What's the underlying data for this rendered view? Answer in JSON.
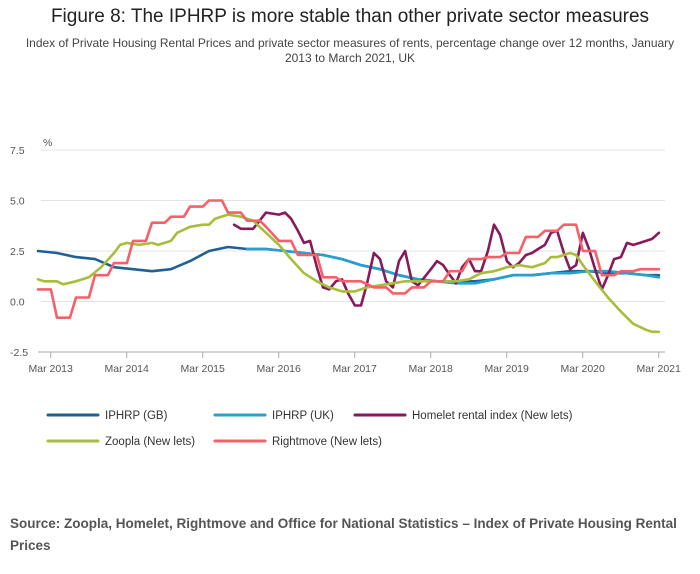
{
  "title": "Figure 8: The IPHRP is more stable than other private sector measures",
  "subtitle": "Index of Private Housing Rental Prices and private sector measures of rents, percentage change over 12 months, January 2013 to March 2021, UK",
  "source": "Source: Zoopla, Homelet, Rightmove and Office for National Statistics – Index of Private Housing Rental Prices",
  "colors": {
    "iphrp_gb": "#206095",
    "iphrp_uk": "#27a0cc",
    "homelet": "#871a5b",
    "zoopla": "#a8bd3a",
    "rightmove": "#f66068"
  },
  "chart_data": {
    "type": "line",
    "ylabel": "%",
    "xlabel": "",
    "ylim": [
      -2.5,
      7.5
    ],
    "xlim": [
      2013.0,
      2021.25
    ],
    "yticks": [
      -2.5,
      0.0,
      2.5,
      5.0,
      7.5
    ],
    "ytick_labels": [
      "-2.5",
      "0.0",
      "2.5",
      "5.0",
      "7.5"
    ],
    "xticks": [
      2013.167,
      2014.167,
      2015.167,
      2016.167,
      2017.167,
      2018.167,
      2019.167,
      2020.167,
      2021.167
    ],
    "xtick_labels": [
      "Mar 2013",
      "Mar 2014",
      "Mar 2015",
      "Mar 2016",
      "Mar 2017",
      "Mar 2018",
      "Mar 2019",
      "Mar 2020",
      "Mar 2021"
    ],
    "grid": true,
    "legend_position": "bottom",
    "series": [
      {
        "name": "IPHRP (GB)",
        "color_key": "iphrp_gb",
        "points": [
          [
            2013.0,
            2.5
          ],
          [
            2013.25,
            2.4
          ],
          [
            2013.5,
            2.2
          ],
          [
            2013.75,
            2.1
          ],
          [
            2014.0,
            1.7
          ],
          [
            2014.25,
            1.6
          ],
          [
            2014.5,
            1.5
          ],
          [
            2014.75,
            1.6
          ],
          [
            2015.0,
            2.0
          ],
          [
            2015.25,
            2.5
          ],
          [
            2015.5,
            2.7
          ],
          [
            2015.75,
            2.6
          ],
          [
            2016.0,
            2.6
          ],
          [
            2016.25,
            2.5
          ],
          [
            2016.5,
            2.4
          ],
          [
            2016.75,
            2.3
          ],
          [
            2017.0,
            2.1
          ],
          [
            2017.25,
            1.8
          ],
          [
            2017.5,
            1.6
          ],
          [
            2017.75,
            1.3
          ],
          [
            2018.0,
            1.1
          ],
          [
            2018.25,
            1.0
          ],
          [
            2018.5,
            1.0
          ],
          [
            2018.75,
            1.0
          ],
          [
            2019.0,
            1.1
          ],
          [
            2019.25,
            1.3
          ],
          [
            2019.5,
            1.3
          ],
          [
            2019.75,
            1.4
          ],
          [
            2020.0,
            1.5
          ],
          [
            2020.25,
            1.5
          ],
          [
            2020.5,
            1.4
          ],
          [
            2020.75,
            1.4
          ],
          [
            2021.0,
            1.3
          ],
          [
            2021.17,
            1.3
          ]
        ]
      },
      {
        "name": "IPHRP (UK)",
        "color_key": "iphrp_uk",
        "points": [
          [
            2015.75,
            2.6
          ],
          [
            2016.0,
            2.6
          ],
          [
            2016.25,
            2.5
          ],
          [
            2016.5,
            2.4
          ],
          [
            2016.75,
            2.3
          ],
          [
            2017.0,
            2.1
          ],
          [
            2017.25,
            1.8
          ],
          [
            2017.5,
            1.6
          ],
          [
            2017.75,
            1.3
          ],
          [
            2018.0,
            1.1
          ],
          [
            2018.25,
            1.0
          ],
          [
            2018.5,
            0.9
          ],
          [
            2018.75,
            0.9
          ],
          [
            2019.0,
            1.1
          ],
          [
            2019.25,
            1.3
          ],
          [
            2019.5,
            1.3
          ],
          [
            2019.75,
            1.4
          ],
          [
            2020.0,
            1.4
          ],
          [
            2020.25,
            1.5
          ],
          [
            2020.5,
            1.5
          ],
          [
            2020.75,
            1.4
          ],
          [
            2021.0,
            1.3
          ],
          [
            2021.17,
            1.2
          ]
        ]
      },
      {
        "name": "Homelet rental index (New lets)",
        "color_key": "homelet",
        "points": [
          [
            2015.58,
            3.8
          ],
          [
            2015.67,
            3.6
          ],
          [
            2015.83,
            3.6
          ],
          [
            2016.0,
            4.4
          ],
          [
            2016.17,
            4.3
          ],
          [
            2016.25,
            4.4
          ],
          [
            2016.33,
            4.1
          ],
          [
            2016.42,
            3.5
          ],
          [
            2016.5,
            2.9
          ],
          [
            2016.58,
            3.0
          ],
          [
            2016.67,
            1.7
          ],
          [
            2016.75,
            0.7
          ],
          [
            2016.83,
            0.6
          ],
          [
            2016.92,
            1.0
          ],
          [
            2017.0,
            1.1
          ],
          [
            2017.08,
            0.4
          ],
          [
            2017.17,
            -0.2
          ],
          [
            2017.25,
            -0.2
          ],
          [
            2017.33,
            0.9
          ],
          [
            2017.42,
            2.4
          ],
          [
            2017.5,
            2.1
          ],
          [
            2017.58,
            1.0
          ],
          [
            2017.67,
            0.7
          ],
          [
            2017.75,
            2.0
          ],
          [
            2017.83,
            2.5
          ],
          [
            2017.92,
            1.0
          ],
          [
            2018.0,
            0.8
          ],
          [
            2018.17,
            1.6
          ],
          [
            2018.25,
            2.0
          ],
          [
            2018.33,
            1.8
          ],
          [
            2018.42,
            1.3
          ],
          [
            2018.5,
            0.9
          ],
          [
            2018.58,
            1.7
          ],
          [
            2018.67,
            2.1
          ],
          [
            2018.75,
            1.5
          ],
          [
            2018.83,
            1.5
          ],
          [
            2018.92,
            2.5
          ],
          [
            2019.0,
            3.8
          ],
          [
            2019.08,
            3.3
          ],
          [
            2019.17,
            2.0
          ],
          [
            2019.25,
            1.7
          ],
          [
            2019.33,
            1.9
          ],
          [
            2019.42,
            2.3
          ],
          [
            2019.5,
            2.4
          ],
          [
            2019.58,
            2.6
          ],
          [
            2019.67,
            2.8
          ],
          [
            2019.75,
            3.4
          ],
          [
            2019.83,
            3.5
          ],
          [
            2019.92,
            2.4
          ],
          [
            2020.0,
            1.6
          ],
          [
            2020.08,
            1.8
          ],
          [
            2020.17,
            3.4
          ],
          [
            2020.25,
            2.6
          ],
          [
            2020.33,
            1.6
          ],
          [
            2020.42,
            0.6
          ],
          [
            2020.5,
            1.3
          ],
          [
            2020.58,
            2.1
          ],
          [
            2020.67,
            2.2
          ],
          [
            2020.75,
            2.9
          ],
          [
            2020.83,
            2.8
          ],
          [
            2020.92,
            2.9
          ],
          [
            2021.0,
            3.0
          ],
          [
            2021.08,
            3.1
          ],
          [
            2021.17,
            3.4
          ]
        ]
      },
      {
        "name": "Zoopla (New lets)",
        "color_key": "zoopla",
        "points": [
          [
            2013.0,
            1.1
          ],
          [
            2013.08,
            1.0
          ],
          [
            2013.25,
            1.0
          ],
          [
            2013.33,
            0.85
          ],
          [
            2013.5,
            1.0
          ],
          [
            2013.67,
            1.2
          ],
          [
            2013.83,
            1.7
          ],
          [
            2014.0,
            2.4
          ],
          [
            2014.08,
            2.8
          ],
          [
            2014.17,
            2.9
          ],
          [
            2014.33,
            2.8
          ],
          [
            2014.5,
            2.9
          ],
          [
            2014.58,
            2.8
          ],
          [
            2014.75,
            3.0
          ],
          [
            2014.83,
            3.4
          ],
          [
            2015.0,
            3.7
          ],
          [
            2015.17,
            3.8
          ],
          [
            2015.25,
            3.8
          ],
          [
            2015.33,
            4.1
          ],
          [
            2015.5,
            4.3
          ],
          [
            2015.67,
            4.2
          ],
          [
            2015.83,
            4.0
          ],
          [
            2016.0,
            3.4
          ],
          [
            2016.17,
            2.8
          ],
          [
            2016.33,
            2.1
          ],
          [
            2016.5,
            1.4
          ],
          [
            2016.67,
            1.0
          ],
          [
            2016.83,
            0.7
          ],
          [
            2017.0,
            0.5
          ],
          [
            2017.17,
            0.5
          ],
          [
            2017.33,
            0.7
          ],
          [
            2017.5,
            0.8
          ],
          [
            2017.67,
            0.9
          ],
          [
            2017.83,
            1.0
          ],
          [
            2018.0,
            1.0
          ],
          [
            2018.17,
            1.0
          ],
          [
            2018.33,
            1.0
          ],
          [
            2018.5,
            1.0
          ],
          [
            2018.67,
            1.1
          ],
          [
            2018.83,
            1.4
          ],
          [
            2019.0,
            1.5
          ],
          [
            2019.17,
            1.7
          ],
          [
            2019.33,
            1.8
          ],
          [
            2019.5,
            1.7
          ],
          [
            2019.67,
            1.9
          ],
          [
            2019.75,
            2.2
          ],
          [
            2019.83,
            2.2
          ],
          [
            2020.0,
            2.4
          ],
          [
            2020.08,
            2.3
          ],
          [
            2020.17,
            1.8
          ],
          [
            2020.33,
            1.0
          ],
          [
            2020.5,
            0.2
          ],
          [
            2020.67,
            -0.5
          ],
          [
            2020.83,
            -1.1
          ],
          [
            2021.0,
            -1.4
          ],
          [
            2021.08,
            -1.5
          ],
          [
            2021.17,
            -1.5
          ]
        ]
      },
      {
        "name": "Rightmove (New lets)",
        "color_key": "rightmove",
        "points": [
          [
            2013.0,
            0.6
          ],
          [
            2013.17,
            0.6
          ],
          [
            2013.25,
            -0.8
          ],
          [
            2013.42,
            -0.8
          ],
          [
            2013.5,
            0.2
          ],
          [
            2013.67,
            0.2
          ],
          [
            2013.75,
            1.3
          ],
          [
            2013.92,
            1.3
          ],
          [
            2014.0,
            1.9
          ],
          [
            2014.17,
            1.9
          ],
          [
            2014.25,
            3.0
          ],
          [
            2014.42,
            3.0
          ],
          [
            2014.5,
            3.9
          ],
          [
            2014.67,
            3.9
          ],
          [
            2014.75,
            4.2
          ],
          [
            2014.92,
            4.2
          ],
          [
            2015.0,
            4.7
          ],
          [
            2015.17,
            4.7
          ],
          [
            2015.25,
            5.0
          ],
          [
            2015.42,
            5.0
          ],
          [
            2015.5,
            4.4
          ],
          [
            2015.67,
            4.4
          ],
          [
            2015.75,
            4.0
          ],
          [
            2015.92,
            4.0
          ],
          [
            2016.0,
            3.7
          ],
          [
            2016.17,
            3.0
          ],
          [
            2016.33,
            3.0
          ],
          [
            2016.42,
            2.3
          ],
          [
            2016.58,
            2.3
          ],
          [
            2016.67,
            2.3
          ],
          [
            2016.75,
            1.2
          ],
          [
            2016.92,
            1.2
          ],
          [
            2017.0,
            1.0
          ],
          [
            2017.17,
            1.0
          ],
          [
            2017.25,
            1.0
          ],
          [
            2017.42,
            0.7
          ],
          [
            2017.58,
            0.7
          ],
          [
            2017.67,
            0.4
          ],
          [
            2017.83,
            0.4
          ],
          [
            2017.92,
            0.7
          ],
          [
            2018.08,
            0.7
          ],
          [
            2018.17,
            1.0
          ],
          [
            2018.33,
            1.0
          ],
          [
            2018.42,
            1.5
          ],
          [
            2018.58,
            1.5
          ],
          [
            2018.67,
            2.1
          ],
          [
            2018.83,
            2.1
          ],
          [
            2018.92,
            2.2
          ],
          [
            2019.08,
            2.2
          ],
          [
            2019.17,
            2.4
          ],
          [
            2019.33,
            2.4
          ],
          [
            2019.42,
            3.2
          ],
          [
            2019.58,
            3.2
          ],
          [
            2019.67,
            3.5
          ],
          [
            2019.83,
            3.5
          ],
          [
            2019.92,
            3.8
          ],
          [
            2020.08,
            3.8
          ],
          [
            2020.17,
            2.5
          ],
          [
            2020.33,
            2.5
          ],
          [
            2020.42,
            1.3
          ],
          [
            2020.58,
            1.3
          ],
          [
            2020.67,
            1.5
          ],
          [
            2020.83,
            1.5
          ],
          [
            2020.92,
            1.6
          ],
          [
            2021.17,
            1.6
          ]
        ]
      }
    ],
    "legend": [
      {
        "label": "IPHRP (GB)",
        "color_key": "iphrp_gb"
      },
      {
        "label": "IPHRP (UK)",
        "color_key": "iphrp_uk"
      },
      {
        "label": "Homelet rental index (New lets)",
        "color_key": "homelet"
      },
      {
        "label": "Zoopla (New lets)",
        "color_key": "zoopla"
      },
      {
        "label": "Rightmove (New lets)",
        "color_key": "rightmove"
      }
    ]
  }
}
